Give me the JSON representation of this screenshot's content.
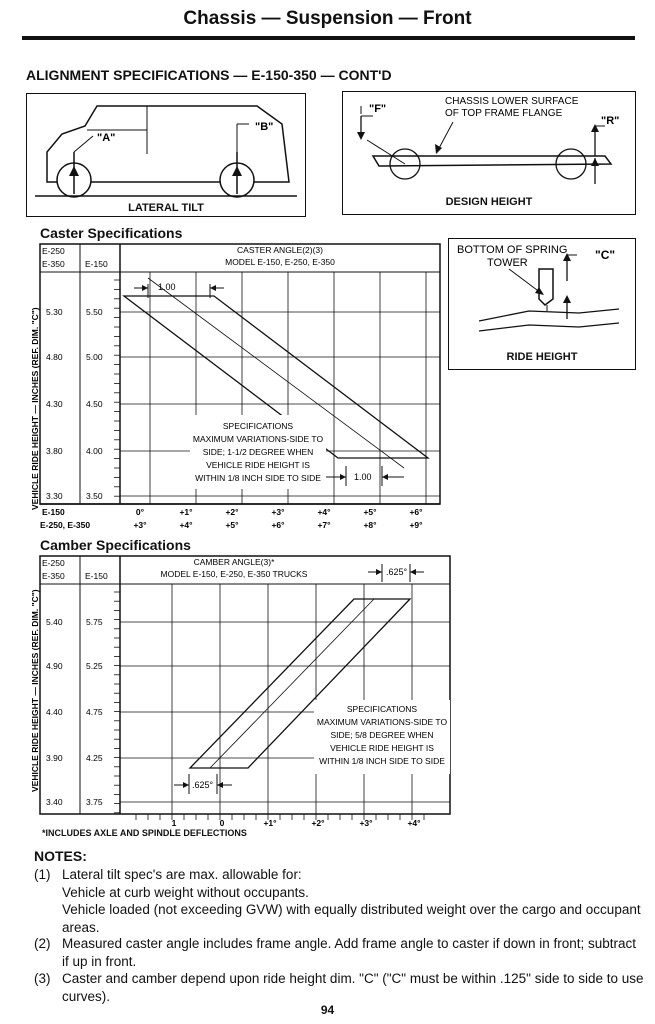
{
  "header": {
    "title": "Chassis — Suspension — Front"
  },
  "section_title": "ALIGNMENT SPECIFICATIONS — E-150-350 — CONT'D",
  "figures": {
    "lateral_tilt": {
      "caption": "LATERAL TILT",
      "label_a": "\"A\"",
      "label_b": "\"B\""
    },
    "design_height": {
      "caption": "DESIGN HEIGHT",
      "label_f": "\"F\"",
      "label_r": "\"R\"",
      "callout_line1": "CHASSIS LOWER SURFACE",
      "callout_line2": "OF TOP FRAME FLANGE"
    },
    "ride_height": {
      "caption": "RIDE HEIGHT",
      "callout_line1": "BOTTOM OF SPRING",
      "callout_line2": "TOWER",
      "label_c": "\"C\""
    }
  },
  "y_axis_label": "VEHICLE RIDE HEIGHT — INCHES (REF. DIM. \"C\")",
  "caster": {
    "title": "Caster Specifications",
    "col_e250_line1": "E-250",
    "col_e250_line2": "E-350",
    "col_e150": "E-150",
    "header_line1": "CASTER ANGLE(2)(3)",
    "header_line2": "MODEL E-150, E-250, E-350",
    "rows_e250_350": [
      "5.30",
      "4.80",
      "4.30",
      "3.80",
      "3.30"
    ],
    "rows_e150": [
      "5.50",
      "5.00",
      "4.50",
      "4.00",
      "3.50"
    ],
    "x_label_e150": "E-150",
    "x_label_e250": "E-250, E-350",
    "x_ticks_e150": [
      "0°",
      "+1°",
      "+2°",
      "+3°",
      "+4°",
      "+5°",
      "+6°"
    ],
    "x_ticks_e250": [
      "+3°",
      "+4°",
      "+5°",
      "+6°",
      "+7°",
      "+8°",
      "+9°"
    ],
    "width_label_top": "1.00",
    "width_label_bottom": "1.00",
    "spec_lines": [
      "SPECIFICATIONS",
      "MAXIMUM VARIATIONS-SIDE TO",
      "SIDE; 1-1/2 DEGREE WHEN",
      "VEHICLE RIDE HEIGHT IS",
      "WITHIN 1/8 INCH SIDE TO SIDE"
    ]
  },
  "camber": {
    "title": "Camber Specifications",
    "col_e250_line1": "E-250",
    "col_e250_line2": "E-350",
    "col_e150": "E-150",
    "header_line1": "CAMBER ANGLE(3)*",
    "header_line2": "MODEL E-150, E-250, E-350 TRUCKS",
    "rows_e250_350": [
      "5.40",
      "4.90",
      "4.40",
      "3.90",
      "3.40"
    ],
    "rows_e150": [
      "5.75",
      "5.25",
      "4.75",
      "4.25",
      "3.75"
    ],
    "x_ticks": [
      "1",
      "0",
      "+1°",
      "+2°",
      "+3°",
      "+4°"
    ],
    "width_label_top": ".625°",
    "width_label_bottom": ".625°",
    "spec_lines": [
      "SPECIFICATIONS",
      "MAXIMUM VARIATIONS-SIDE TO",
      "SIDE; 5/8 DEGREE WHEN",
      "VEHICLE RIDE HEIGHT IS",
      "WITHIN 1/8 INCH SIDE TO SIDE"
    ]
  },
  "footnote": "*INCLUDES AXLE AND SPINDLE DEFLECTIONS",
  "notes": {
    "heading": "NOTES:",
    "n1_num": "(1)",
    "n1_line1": "Lateral tilt spec's are max. allowable for:",
    "n1_line2": "Vehicle at curb weight without occupants.",
    "n1_line3": "Vehicle loaded (not exceeding GVW) with equally distributed weight over the cargo and occupant areas.",
    "n2_num": "(2)",
    "n2_text": "Measured caster angle includes frame angle. Add frame angle to caster if down in front; subtract if up in front.",
    "n3_num": "(3)",
    "n3_text": "Caster and camber depend upon ride height dim. \"C\" (\"C\" must be within .125\" side to side to use curves)."
  },
  "page_number": "94"
}
